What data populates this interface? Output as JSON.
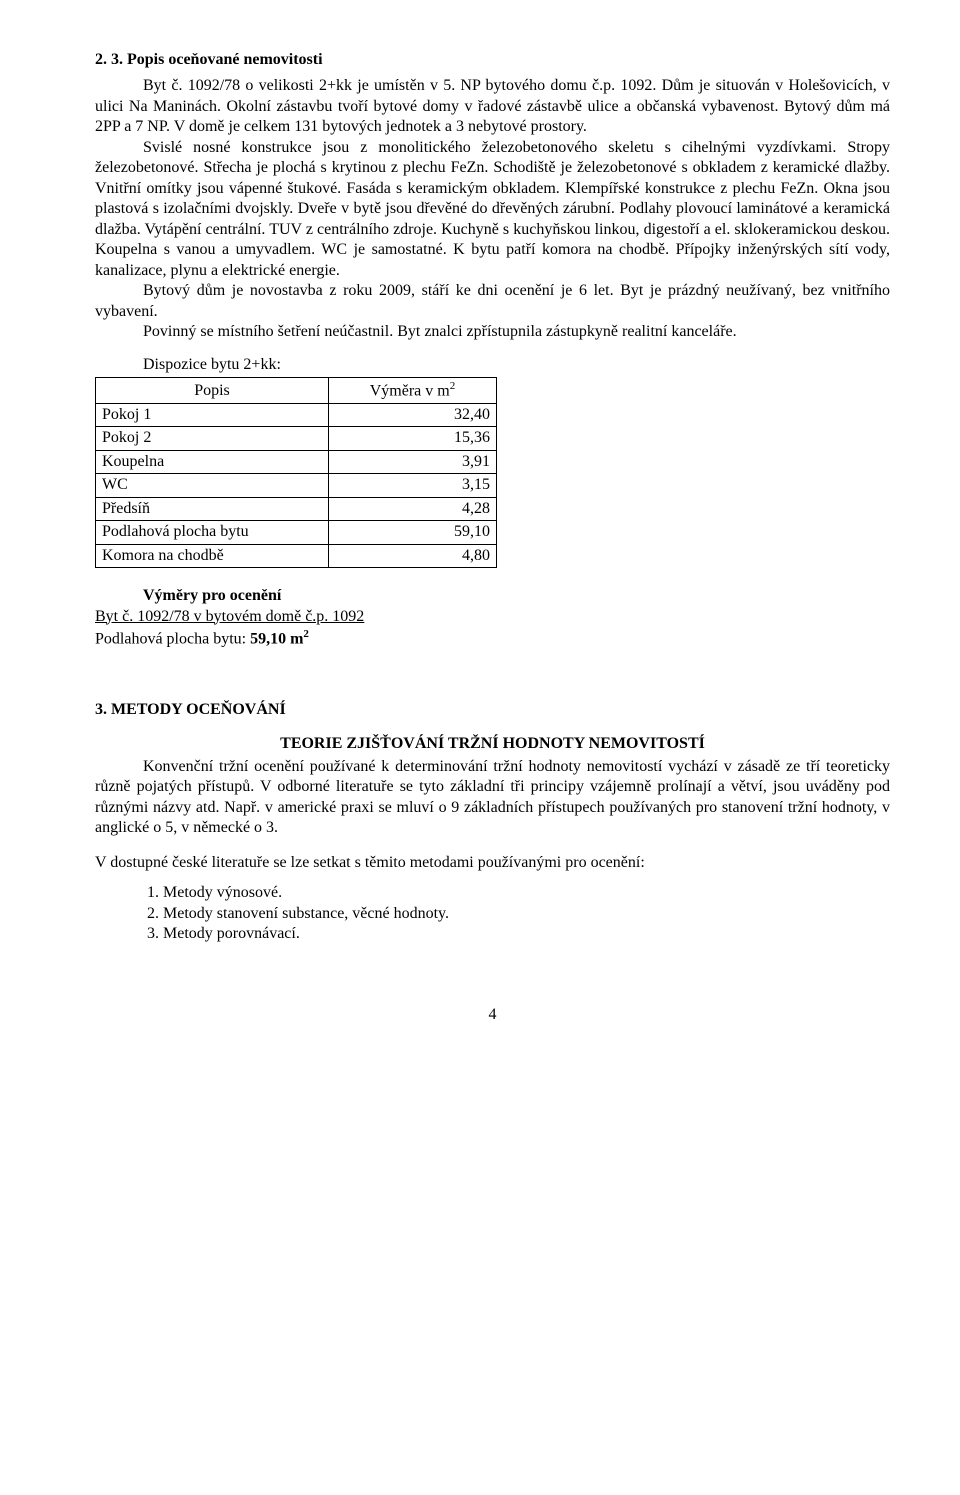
{
  "section23": {
    "heading": "2. 3.   Popis oceňované nemovitosti",
    "p1": "Byt č. 1092/78 o velikosti 2+kk je umístěn v 5. NP bytového domu č.p. 1092. Dům je situován v Holešovicích, v ulici Na Maninách. Okolní zástavbu tvoří bytové domy v řadové zástavbě ulice a občanská vybavenost. Bytový dům má 2PP a 7 NP. V domě je celkem 131 bytových jednotek a 3 nebytové prostory.",
    "p2": "Svislé nosné konstrukce jsou z monolitického železobetonového skeletu s cihelnými vyzdívkami. Stropy železobetonové. Střecha je plochá s krytinou z plechu FeZn. Schodiště je železobetonové s obkladem z keramické dlažby. Vnitřní omítky jsou vápenné štukové. Fasáda s keramickým obkladem. Klempířské konstrukce z plechu FeZn. Okna jsou plastová s izolačními dvojskly. Dveře v bytě jsou dřevěné do dřevěných zárubní. Podlahy plovoucí laminátové a keramická dlažba. Vytápění centrální. TUV z centrálního zdroje. Kuchyně s kuchyňskou linkou, digestoří a el. sklokeramickou deskou. Koupelna s vanou a umyvadlem. WC je samostatné.  K bytu patří komora na chodbě. Přípojky inženýrských sítí vody, kanalizace, plynu a elektrické energie.",
    "p3": "Bytový dům je novostavba z roku 2009, stáří ke dni ocenění je 6 let. Byt je prázdný neužívaný, bez vnitřního vybavení.",
    "p4": "Povinný se místního šetření neúčastnil. Byt znalci zpřístupnila zástupkyně realitní kanceláře."
  },
  "dispozice": {
    "title": "Dispozice bytu 2+kk:",
    "header_popis": "Popis",
    "header_vymera": "Výměra v m",
    "header_vymera_sup": "2",
    "rows": [
      {
        "label": "Pokoj 1",
        "value": "32,40",
        "bold": false
      },
      {
        "label": "Pokoj 2",
        "value": "15,36",
        "bold": false
      },
      {
        "label": "Koupelna",
        "value": "3,91",
        "bold": false
      },
      {
        "label": "WC",
        "value": "3,15",
        "bold": false
      },
      {
        "label": "Předsíň",
        "value": "4,28",
        "bold": false
      },
      {
        "label": "Podlahová plocha bytu",
        "value": "59,10",
        "bold": true
      },
      {
        "label": "Komora na chodbě",
        "value": "4,80",
        "bold": false
      }
    ]
  },
  "vymery": {
    "heading": "Výměry pro ocenění",
    "line1": "Byt č. 1092/78 v bytovém domě č.p. 1092",
    "line2_prefix": "Podlahová plocha bytu:  ",
    "line2_value": "59,10 m",
    "line2_sup": "2"
  },
  "section3": {
    "heading": "3.   METODY OCEŇOVÁNÍ",
    "subheading": "TEORIE ZJIŠŤOVÁNÍ TRŽNÍ HODNOTY NEMOVITOSTÍ",
    "p1": "Konvenční tržní ocenění používané k determinování tržní hodnoty nemovitostí vychází v zásadě ze tří teoreticky různě pojatých přístupů. V odborné literatuře se tyto základní tři principy vzájemně prolínají a větví, jsou uváděny pod různými názvy atd. Např. v americké praxi se mluví o 9 základních přístupech používaných pro stanovení tržní hodnoty, v anglické o 5, v německé o 3.",
    "p2": "V dostupné české literatuře se lze setkat s těmito metodami používanými pro ocenění:",
    "list": [
      "Metody výnosové.",
      "Metody stanovení substance, věcné hodnoty.",
      "Metody porovnávací."
    ]
  },
  "page_number": "4"
}
